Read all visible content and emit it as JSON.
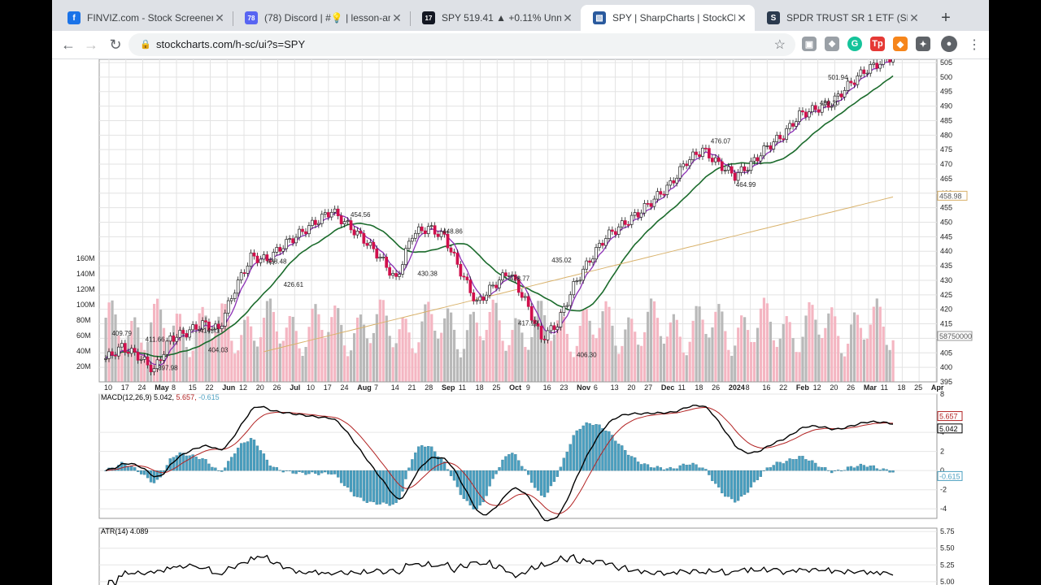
{
  "browser": {
    "tabs": [
      {
        "title": "FINVIZ.com - Stock Screener",
        "favicon_color": "#1a73e8",
        "favicon_glyph": "f",
        "active": false
      },
      {
        "title": "(78) Discord | #💡 | lesson-an",
        "favicon_color": "#5865f2",
        "favicon_glyph": "78",
        "active": false
      },
      {
        "title": "SPY 519.41 ▲ +0.11% Unnam",
        "favicon_color": "#131722",
        "favicon_glyph": "17",
        "active": false
      },
      {
        "title": "SPY | SharpCharts | StockCha",
        "favicon_color": "#2a5a9e",
        "favicon_glyph": "▧",
        "active": true
      },
      {
        "title": "SPDR TRUST SR 1 ETF (SPY)",
        "favicon_color": "#2b3a4e",
        "favicon_glyph": "S",
        "active": false
      }
    ],
    "url": "stockcharts.com/h-sc/ui?s=SPY",
    "extensions": [
      {
        "name": "screenshot-extension-icon",
        "color": "#9aa0a6",
        "glyph": "▣"
      },
      {
        "name": "dropbox-icon",
        "color": "#9aa0a6",
        "glyph": "❖"
      },
      {
        "name": "grammarly-icon",
        "color": "#15c39a",
        "glyph": "G"
      },
      {
        "name": "tp-extension-icon",
        "color": "#e53935",
        "glyph": "Tp"
      },
      {
        "name": "metamask-icon",
        "color": "#f6851b",
        "glyph": "◆"
      },
      {
        "name": "extensions-puzzle-icon",
        "color": "#5f6368",
        "glyph": "✦"
      }
    ]
  },
  "chart": {
    "price_panel": {
      "y_ticks": [
        "505",
        "500",
        "495",
        "490",
        "485",
        "480",
        "475",
        "470",
        "465",
        "460",
        "455",
        "450",
        "445",
        "440",
        "435",
        "430",
        "425",
        "420",
        "415",
        "410",
        "405",
        "400",
        "395"
      ],
      "ma200_label": "458.98",
      "volume_label": "58750000",
      "volume_ticks": [
        "160M",
        "140M",
        "120M",
        "100M",
        "80M",
        "60M",
        "40M",
        "20M"
      ],
      "annotations": [
        {
          "text": "409.79",
          "v": "409.79"
        },
        {
          "text": "411.66",
          "v": "411.66"
        },
        {
          "text": "397.98",
          "v": "397.98"
        },
        {
          "text": "414.71",
          "v": "414.71"
        },
        {
          "text": "404.03",
          "v": "404.03"
        },
        {
          "text": "438.48",
          "v": "438.48"
        },
        {
          "text": "426.61",
          "v": "426.61"
        },
        {
          "text": "454.56",
          "v": "454.56"
        },
        {
          "text": "430.38",
          "v": "430.38"
        },
        {
          "text": "448.86",
          "v": "448.86"
        },
        {
          "text": "428.77",
          "v": "428.77"
        },
        {
          "text": "417.19",
          "v": "417.19"
        },
        {
          "text": "435.02",
          "v": "435.02"
        },
        {
          "text": "406.30",
          "v": "406.30"
        },
        {
          "text": "476.07",
          "v": "476.07"
        },
        {
          "text": "464.99",
          "v": "464.99"
        },
        {
          "text": "489.20",
          "v": "489.20"
        },
        {
          "text": "501.94",
          "v": "501.94"
        }
      ],
      "x_labels": [
        "10",
        "17",
        "24",
        "May",
        "8",
        "15",
        "22",
        "Jun",
        "12",
        "20",
        "26",
        "Jul",
        "10",
        "17",
        "24",
        "Aug",
        "7",
        "14",
        "21",
        "28",
        "Sep",
        "11",
        "18",
        "25",
        "Oct",
        "9",
        "16",
        "23",
        "Nov",
        "6",
        "13",
        "20",
        "27",
        "Dec",
        "11",
        "18",
        "26",
        "2024",
        "8",
        "16",
        "22",
        "Feb",
        "12",
        "20",
        "26",
        "Mar",
        "11",
        "18",
        "25",
        "Apr"
      ]
    },
    "macd_panel": {
      "label": "MACD(12,26,9) 5.042, 5.657, -0.615",
      "label_main": "MACD(12,26,9) 5.042,",
      "label_signal": "5.657,",
      "label_hist": "-0.615",
      "y_ticks": [
        "8",
        "4",
        "2",
        "0",
        "-2",
        "-4"
      ],
      "macd_value": "5.042",
      "signal_value": "5.657",
      "hist_value": "-0.615"
    },
    "atr_panel": {
      "label": "ATR(14) 4.089",
      "y_ticks": [
        "5.75",
        "5.50",
        "5.25",
        "5.00"
      ]
    },
    "colors": {
      "up_volume": "#f4b6c2",
      "down_volume": "#b9b9b9",
      "ma_fast": "#8b2fb5",
      "ma_mid": "#1b6b2c",
      "ma_200": "#d9b26b",
      "macd_line": "#000000",
      "signal_line": "#b22222",
      "histogram": "#4a9fc0"
    }
  },
  "chart_data": {
    "type": "line",
    "symbol": "SPY",
    "price_y_range": [
      395,
      505
    ],
    "price_y_axis": "right",
    "series": [
      {
        "values": [
          403,
          407,
          404,
          399,
          410,
          412,
          415,
          413,
          427,
          438,
          437,
          442,
          446,
          450,
          454,
          449,
          444,
          438,
          430,
          446,
          448,
          445,
          433,
          422,
          428,
          433,
          423,
          410,
          415,
          428,
          437,
          445,
          449,
          453,
          458,
          463,
          471,
          475,
          470,
          466,
          470,
          476,
          480,
          487,
          489,
          491,
          497,
          502,
          505,
          508
        ]
      }
    ],
    "ma200_value": 458.98,
    "volume_value": 58750000,
    "macd": {
      "macd": 5.042,
      "signal": 5.657,
      "histogram": -0.615,
      "y_range": [
        -5,
        8
      ]
    },
    "atr": {
      "period": 14,
      "value": 4.089
    }
  }
}
